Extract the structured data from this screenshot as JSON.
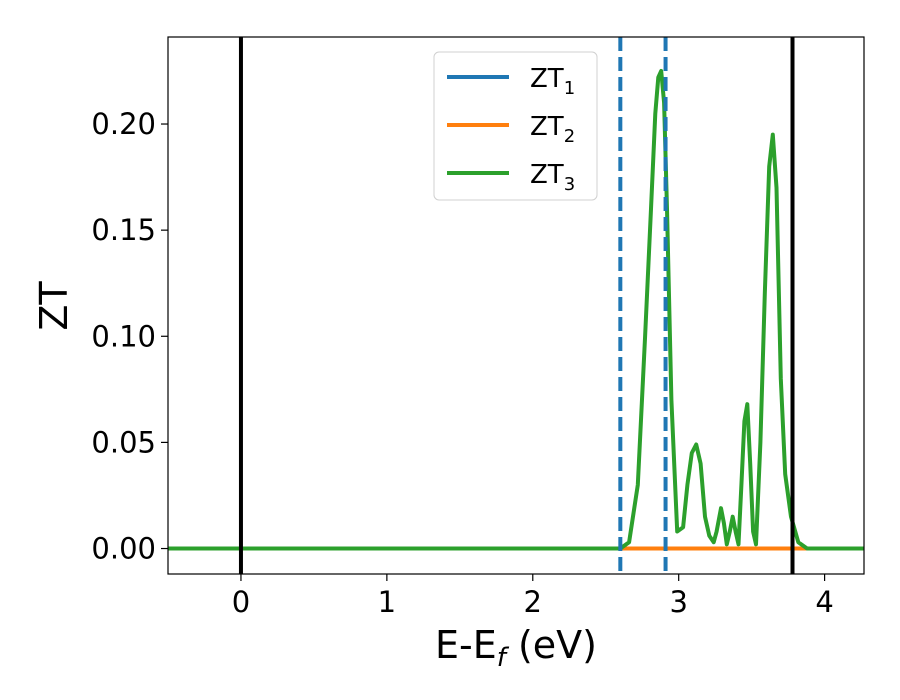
{
  "chart_data": {
    "type": "line",
    "title": "",
    "xlabel": {
      "main": "E-E",
      "sub": "f",
      "unit": " (eV)"
    },
    "ylabel": "ZT",
    "xlim": [
      -0.5,
      4.27
    ],
    "ylim": [
      -0.012,
      0.241
    ],
    "xticks": [
      0,
      1,
      2,
      3,
      4
    ],
    "xtick_labels": [
      "0",
      "1",
      "2",
      "3",
      "4"
    ],
    "yticks": [
      0.0,
      0.05,
      0.1,
      0.15,
      0.2
    ],
    "ytick_labels": [
      "0.00",
      "0.05",
      "0.10",
      "0.15",
      "0.20"
    ],
    "grid": false,
    "legend": {
      "position": "top-center"
    },
    "series": [
      {
        "name": "ZT",
        "sub": "1",
        "color": "#1f77b4",
        "x": [
          -0.5,
          4.27
        ],
        "y": [
          0,
          0
        ]
      },
      {
        "name": "ZT",
        "sub": "2",
        "color": "#ff7f0e",
        "x": [
          -0.5,
          4.27
        ],
        "y": [
          0,
          0
        ]
      },
      {
        "name": "ZT",
        "sub": "3",
        "color": "#2ca02c",
        "x": [
          -0.5,
          2.6,
          2.66,
          2.72,
          2.77,
          2.81,
          2.84,
          2.86,
          2.88,
          2.9,
          2.92,
          2.95,
          2.99,
          3.03,
          3.06,
          3.09,
          3.12,
          3.15,
          3.18,
          3.21,
          3.24,
          3.26,
          3.29,
          3.31,
          3.33,
          3.35,
          3.37,
          3.39,
          3.41,
          3.43,
          3.45,
          3.47,
          3.49,
          3.51,
          3.53,
          3.56,
          3.59,
          3.62,
          3.645,
          3.67,
          3.7,
          3.73,
          3.77,
          3.82,
          3.88,
          4.27
        ],
        "y": [
          0,
          0,
          0.003,
          0.03,
          0.1,
          0.16,
          0.205,
          0.222,
          0.225,
          0.21,
          0.16,
          0.07,
          0.008,
          0.01,
          0.03,
          0.045,
          0.049,
          0.04,
          0.015,
          0.006,
          0.003,
          0.008,
          0.019,
          0.012,
          0.002,
          0.008,
          0.015,
          0.008,
          0.002,
          0.03,
          0.06,
          0.068,
          0.04,
          0.008,
          0.002,
          0.05,
          0.12,
          0.18,
          0.195,
          0.17,
          0.08,
          0.035,
          0.015,
          0.003,
          0.0,
          0.0
        ]
      }
    ],
    "vlines": [
      {
        "x": 0,
        "color": "#000000",
        "style": "solid"
      },
      {
        "x": 3.78,
        "color": "#000000",
        "style": "solid"
      },
      {
        "x": 2.6,
        "color": "#1f77b4",
        "style": "dashed"
      },
      {
        "x": 2.91,
        "color": "#1f77b4",
        "style": "dashed"
      }
    ]
  }
}
